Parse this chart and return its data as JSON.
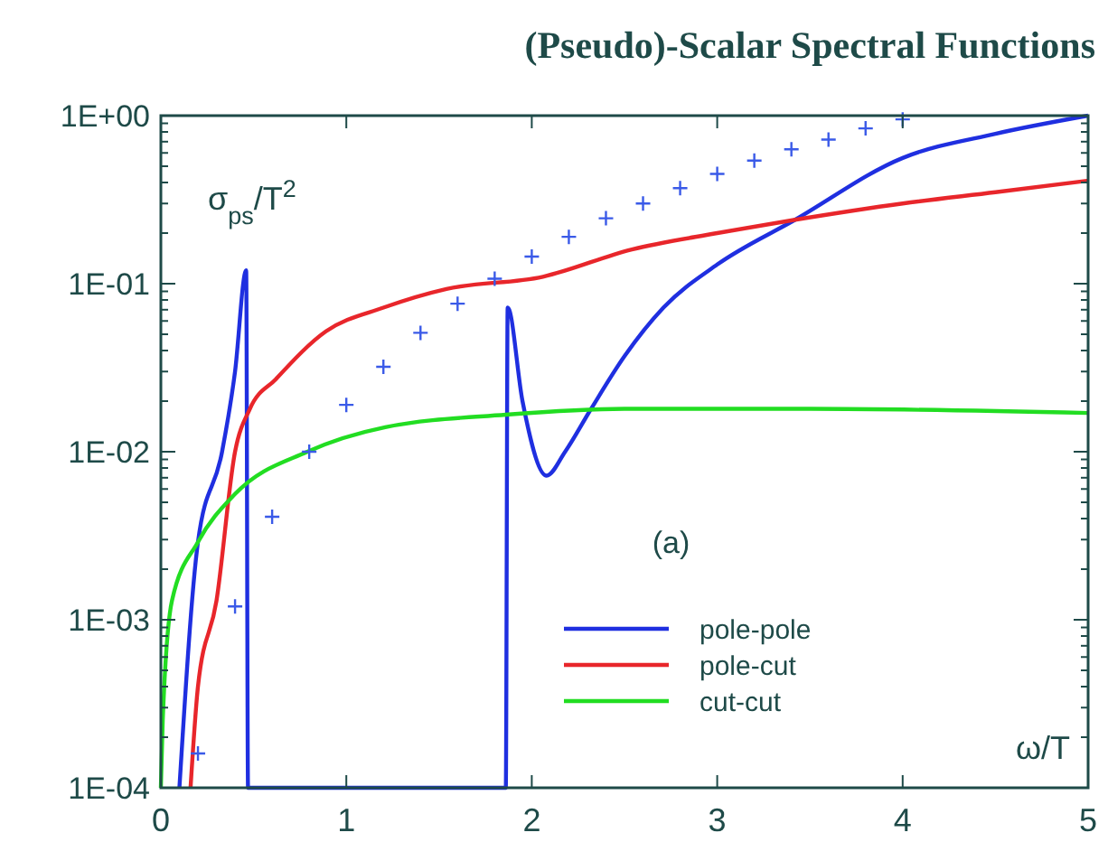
{
  "chart_data": {
    "type": "line",
    "title": "(Pseudo)-Scalar Spectral Functions",
    "xlabel": "ω/T",
    "ylabel": "σ$_{ps}$/T$^{2}$",
    "annotations": [
      "(a)"
    ],
    "log": "y",
    "legend": "bottom right",
    "line_style": "solid",
    "xlim": [
      0,
      5
    ],
    "xticks": [
      0,
      1,
      2,
      3,
      4,
      5
    ],
    "ylim": [
      0.0001,
      1
    ],
    "yticks": [
      {
        "value": 0.0001,
        "label": "1E-04"
      },
      {
        "value": 0.0002,
        "label": null
      },
      {
        "value": 0.0003,
        "label": null
      },
      {
        "value": 0.0004,
        "label": null
      },
      {
        "value": 0.0005,
        "label": null
      },
      {
        "value": 0.0006,
        "label": null
      },
      {
        "value": 0.0007,
        "label": null
      },
      {
        "value": 0.0008,
        "label": null
      },
      {
        "value": 0.0009,
        "label": null
      },
      {
        "value": 0.001,
        "label": "1E-03"
      },
      {
        "value": 0.002,
        "label": null
      },
      {
        "value": 0.003,
        "label": null
      },
      {
        "value": 0.004,
        "label": null
      },
      {
        "value": 0.005,
        "label": null
      },
      {
        "value": 0.006,
        "label": null
      },
      {
        "value": 0.007,
        "label": null
      },
      {
        "value": 0.008,
        "label": null
      },
      {
        "value": 0.009,
        "label": null
      },
      {
        "value": 0.01,
        "label": "1E-02"
      },
      {
        "value": 0.02,
        "label": null
      },
      {
        "value": 0.03,
        "label": null
      },
      {
        "value": 0.04,
        "label": null
      },
      {
        "value": 0.05,
        "label": null
      },
      {
        "value": 0.06,
        "label": null
      },
      {
        "value": 0.07,
        "label": null
      },
      {
        "value": 0.08,
        "label": null
      },
      {
        "value": 0.09,
        "label": null
      },
      {
        "value": 0.1,
        "label": "1E-01"
      },
      {
        "value": 0.2,
        "label": null
      },
      {
        "value": 0.3,
        "label": null
      },
      {
        "value": 0.4,
        "label": null
      },
      {
        "value": 0.5,
        "label": null
      },
      {
        "value": 0.6,
        "label": null
      },
      {
        "value": 0.7,
        "label": null
      },
      {
        "value": 0.8,
        "label": null
      },
      {
        "value": 0.9,
        "label": null
      },
      {
        "value": 1,
        "label": "1E+00"
      }
    ],
    "series": [
      {
        "name": "pole-pole",
        "color": "#1f2fe0",
        "x": [
          0.1,
          0.2,
          0.33,
          0.4,
          0.46,
          0.47,
          1.86,
          1.87,
          1.95,
          2.08,
          2.18,
          2.32,
          2.5,
          2.71,
          3.0,
          3.42,
          4.0,
          4.5,
          5.0
        ],
        "values": [
          0.0001,
          0.0029,
          0.01,
          0.03,
          0.12,
          0.0001,
          0.0001,
          0.072,
          0.02,
          0.0072,
          0.01,
          0.018,
          0.037,
          0.072,
          0.13,
          0.24,
          0.56,
          0.78,
          1.0
        ]
      },
      {
        "name": "pole-cut",
        "color": "#e8262b",
        "x": [
          0.16,
          0.2,
          0.3,
          0.4,
          0.48,
          0.62,
          0.89,
          1.2,
          1.54,
          2.06,
          2.54,
          3.0,
          3.42,
          4.0,
          4.5,
          5.0
        ],
        "values": [
          0.0001,
          0.0004,
          0.0013,
          0.01,
          0.018,
          0.027,
          0.052,
          0.072,
          0.093,
          0.11,
          0.16,
          0.2,
          0.24,
          0.3,
          0.35,
          0.41
        ]
      },
      {
        "name": "cut-cut",
        "color": "#22dd22",
        "x": [
          0.0,
          0.01,
          0.06,
          0.2,
          0.4,
          0.79,
          1.21,
          1.86,
          2.5,
          3.5,
          5.0
        ],
        "values": [
          0.0001,
          0.00025,
          0.0013,
          0.0029,
          0.0056,
          0.01,
          0.014,
          0.0166,
          0.018,
          0.018,
          0.017
        ]
      },
      {
        "type": "scatter",
        "marker": "cross",
        "color": "#3a5ae8",
        "x": [
          0.2,
          0.4,
          0.6,
          0.8,
          1.0,
          1.2,
          1.4,
          1.6,
          1.8,
          2.0,
          2.2,
          2.4,
          2.6,
          2.8,
          3.0,
          3.2,
          3.4,
          3.6,
          3.8,
          4.0
        ],
        "values": [
          0.00016,
          0.0012,
          0.0041,
          0.01,
          0.019,
          0.032,
          0.051,
          0.076,
          0.107,
          0.145,
          0.19,
          0.245,
          0.3,
          0.37,
          0.45,
          0.54,
          0.63,
          0.72,
          0.84,
          0.95
        ]
      }
    ]
  }
}
